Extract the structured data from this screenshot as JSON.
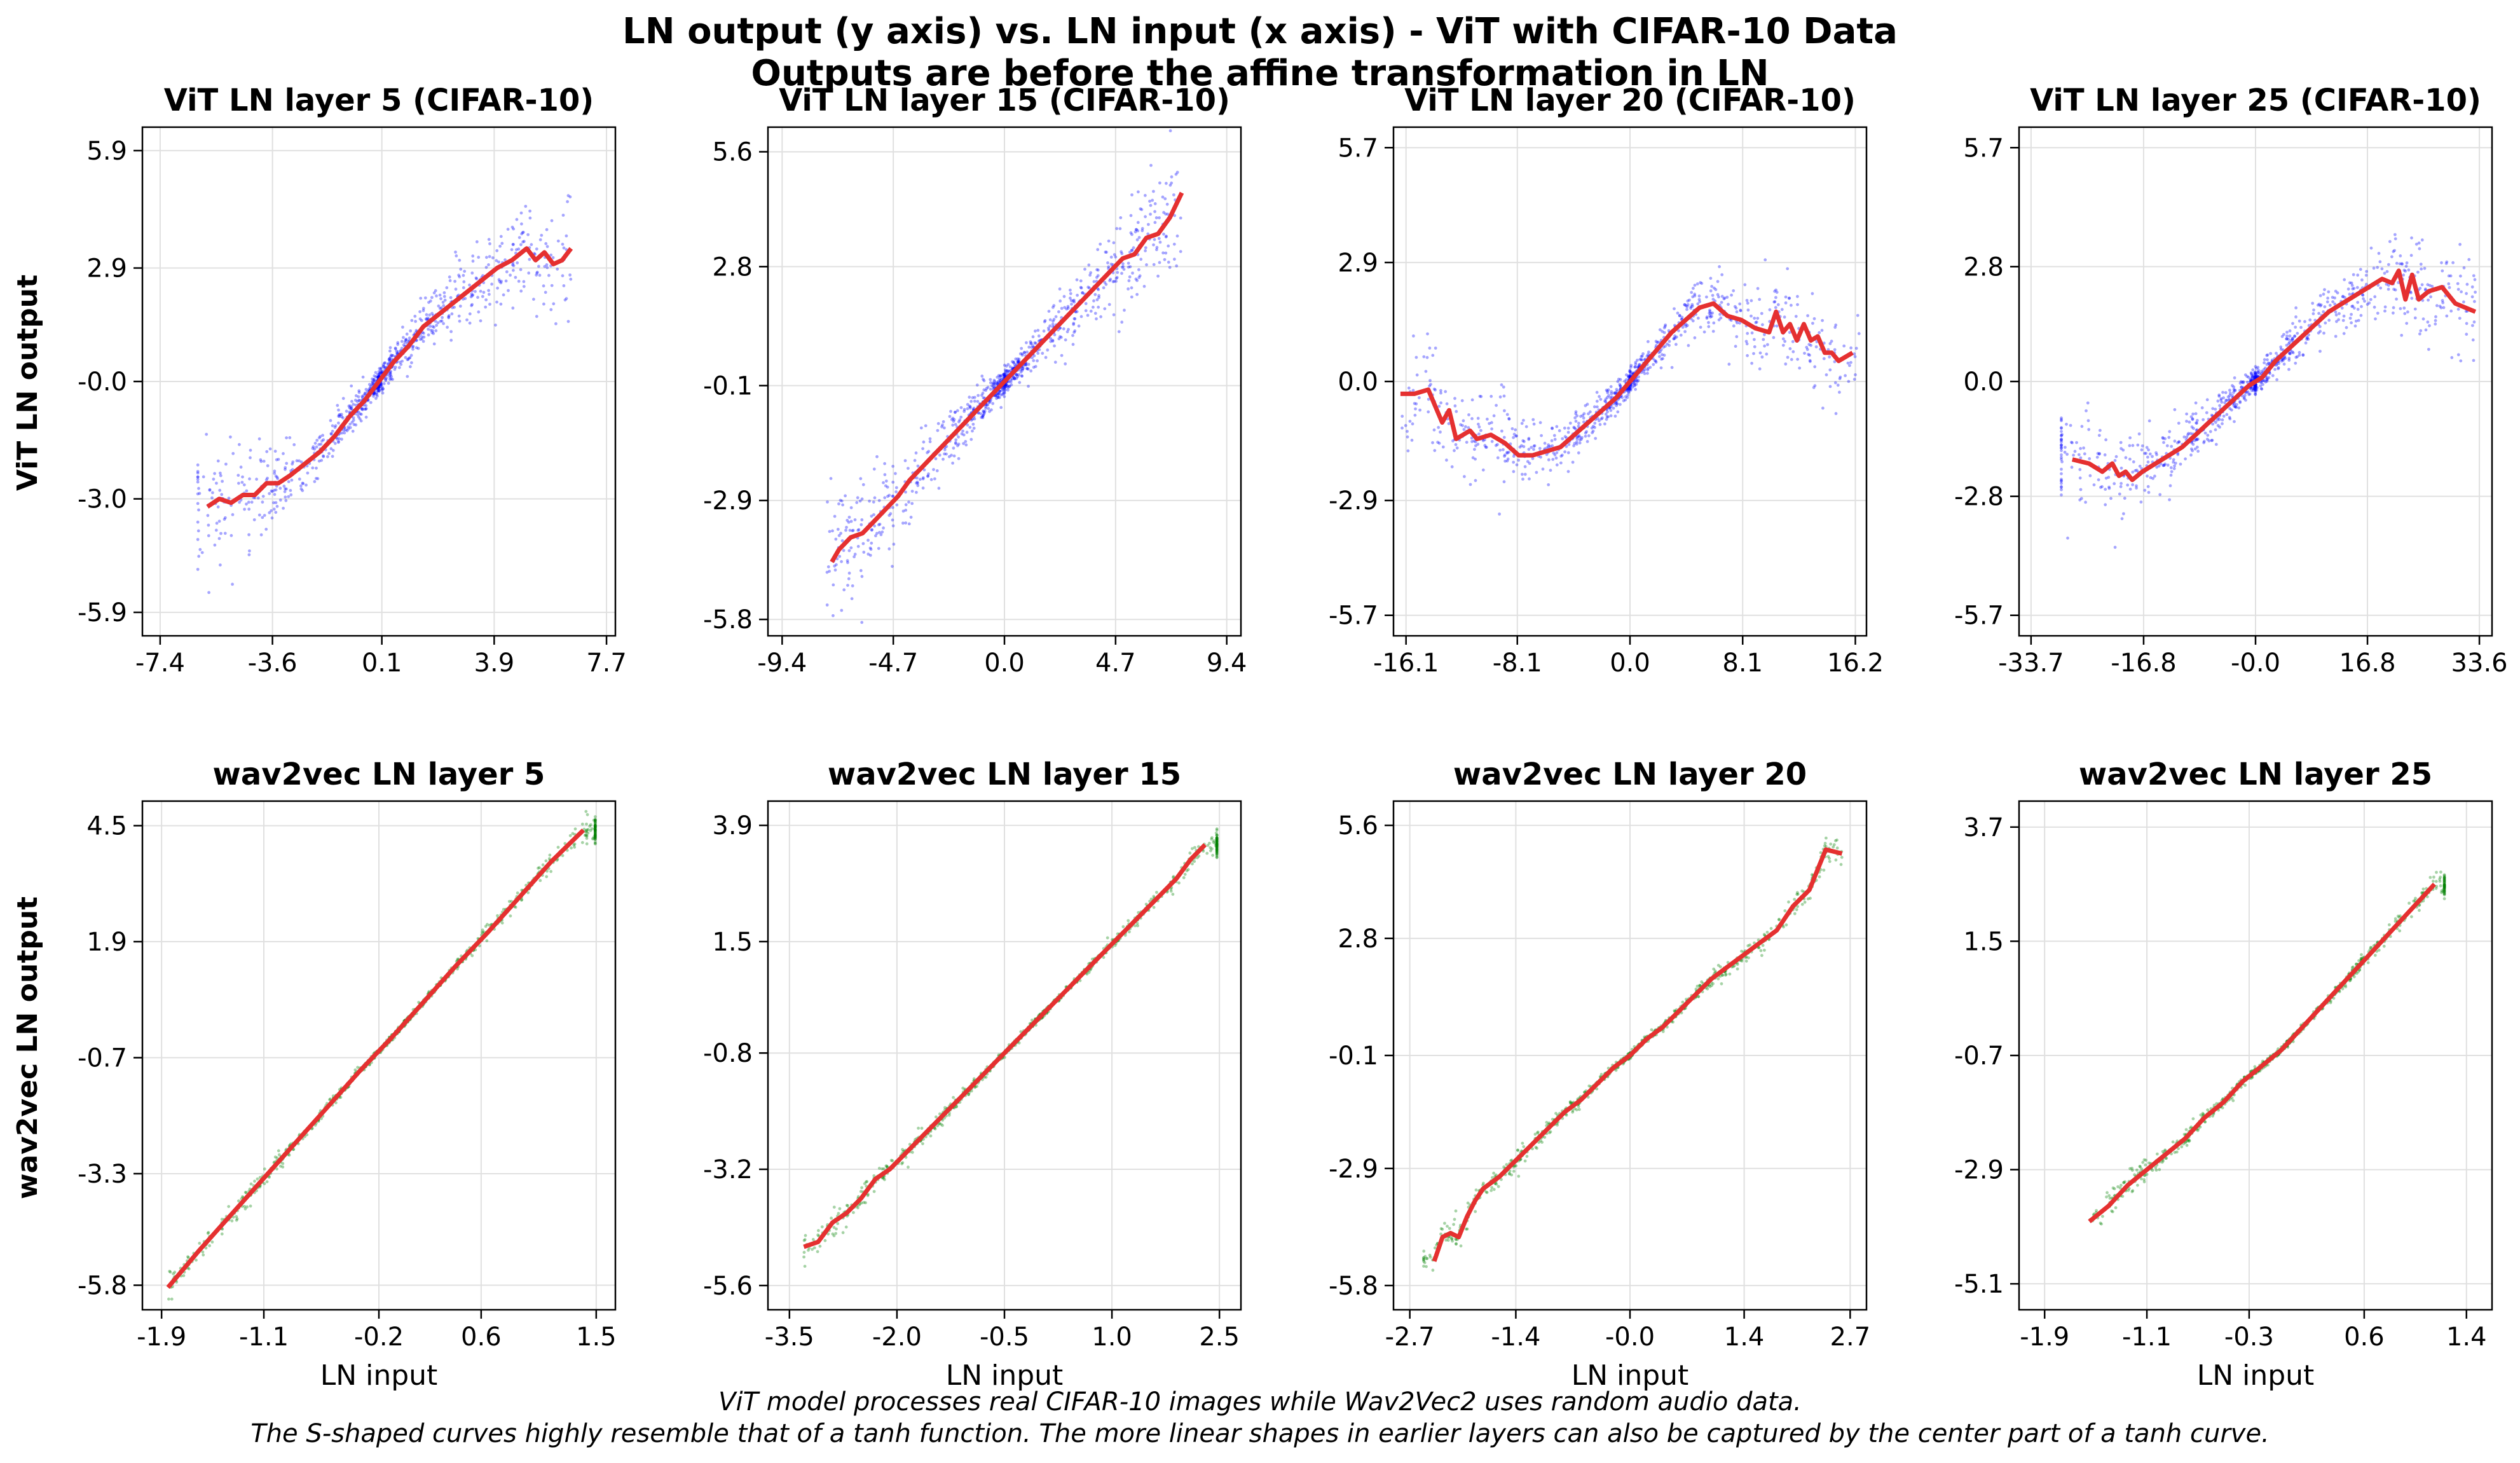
{
  "figure": {
    "title_line1": "LN output (y axis) vs. LN input (x axis) - ViT with CIFAR-10 Data",
    "title_line2": "Outputs are before the affine transformation in LN",
    "caption_line1": "ViT model processes real CIFAR-10 images while Wav2Vec2 uses random audio data.",
    "caption_line2": "The S-shaped curves highly resemble that of a tanh function. The more linear shapes in earlier layers can also be captured by the center part of a tanh curve.",
    "row_labels": [
      "ViT LN output",
      "wav2vec LN output"
    ],
    "colors": {
      "vit_points": "#0000ff",
      "wav2vec_points": "#008000",
      "trend_line": "#e53030",
      "grid": "#e0e0e0"
    }
  },
  "chart_data": [
    {
      "type": "scatter",
      "title": "ViT LN layer 5 (CIFAR-10)",
      "xlabel": "",
      "ylabel": "ViT LN output",
      "xlim": [
        -8.0,
        8.0
      ],
      "ylim": [
        -6.5,
        6.5
      ],
      "xticks": [
        -7.4,
        -3.6,
        0.1,
        3.9,
        7.7
      ],
      "xtick_labels": [
        "-7.4",
        "-3.6",
        "0.1",
        "3.9",
        "7.7"
      ],
      "yticks": [
        -5.9,
        -3.0,
        0.0,
        2.9,
        5.9
      ],
      "ytick_labels": [
        "-5.9",
        "-3.0",
        "-0.0",
        "2.9",
        "5.9"
      ],
      "points_color": "#0000ff",
      "grid": true,
      "trend_x": [
        -5.8,
        -5.4,
        -5.0,
        -4.6,
        -4.2,
        -3.8,
        -3.4,
        -3.0,
        -2.5,
        -2.0,
        -1.5,
        -1.0,
        -0.5,
        0.0,
        0.5,
        1.0,
        1.5,
        2.0,
        2.5,
        3.0,
        3.5,
        4.0,
        4.5,
        5.0,
        5.3,
        5.6,
        5.9,
        6.2,
        6.5
      ],
      "trend_y": [
        -3.2,
        -3.0,
        -3.1,
        -2.9,
        -2.9,
        -2.6,
        -2.6,
        -2.4,
        -2.1,
        -1.8,
        -1.4,
        -0.9,
        -0.5,
        0.0,
        0.5,
        0.9,
        1.4,
        1.7,
        2.0,
        2.3,
        2.6,
        2.9,
        3.1,
        3.4,
        3.1,
        3.3,
        3.0,
        3.1,
        3.4
      ]
    },
    {
      "type": "scatter",
      "title": "ViT LN layer 15 (CIFAR-10)",
      "xlabel": "",
      "ylabel": "",
      "xlim": [
        -10.0,
        10.0
      ],
      "ylim": [
        -6.2,
        6.2
      ],
      "xticks": [
        -9.4,
        -4.7,
        0.0,
        4.7,
        9.4
      ],
      "xtick_labels": [
        "-9.4",
        "-4.7",
        "0.0",
        "4.7",
        "9.4"
      ],
      "yticks": [
        -5.8,
        -2.9,
        -0.1,
        2.8,
        5.6
      ],
      "ytick_labels": [
        "-5.8",
        "-2.9",
        "-0.1",
        "2.8",
        "5.6"
      ],
      "points_color": "#0000ff",
      "grid": true,
      "trend_x": [
        -7.3,
        -7.0,
        -6.5,
        -6.0,
        -5.5,
        -5.0,
        -4.5,
        -4.0,
        -3.5,
        -3.0,
        -2.5,
        -2.0,
        -1.5,
        -1.0,
        -0.5,
        0.0,
        0.5,
        1.0,
        1.5,
        2.0,
        2.5,
        3.0,
        3.5,
        4.0,
        4.5,
        5.0,
        5.5,
        6.0,
        6.5,
        7.0,
        7.5
      ],
      "trend_y": [
        -4.4,
        -4.1,
        -3.8,
        -3.7,
        -3.4,
        -3.1,
        -2.8,
        -2.4,
        -2.1,
        -1.8,
        -1.5,
        -1.2,
        -0.9,
        -0.6,
        -0.3,
        0.0,
        0.3,
        0.6,
        0.9,
        1.2,
        1.5,
        1.8,
        2.1,
        2.4,
        2.7,
        3.0,
        3.1,
        3.5,
        3.6,
        4.0,
        4.6
      ]
    },
    {
      "type": "scatter",
      "title": "ViT LN layer 20 (CIFAR-10)",
      "xlabel": "",
      "ylabel": "",
      "xlim": [
        -17.0,
        17.0
      ],
      "ylim": [
        -6.2,
        6.2
      ],
      "xticks": [
        -16.1,
        -8.1,
        0.0,
        8.1,
        16.2
      ],
      "xtick_labels": [
        "-16.1",
        "-8.1",
        "0.0",
        "8.1",
        "16.2"
      ],
      "yticks": [
        -5.7,
        -2.9,
        0.0,
        2.9,
        5.7
      ],
      "ytick_labels": [
        "-5.7",
        "-2.9",
        "0.0",
        "2.9",
        "5.7"
      ],
      "points_color": "#0000ff",
      "grid": true,
      "trend_x": [
        -16.5,
        -15.5,
        -14.5,
        -14.0,
        -13.5,
        -13.0,
        -12.5,
        -12.0,
        -11.5,
        -11.0,
        -10.0,
        -9.0,
        -8.0,
        -7.0,
        -6.0,
        -5.0,
        -4.0,
        -3.0,
        -2.0,
        -1.0,
        0.0,
        1.0,
        2.0,
        3.0,
        4.0,
        5.0,
        6.0,
        7.0,
        8.0,
        9.0,
        10.0,
        10.5,
        11.0,
        11.5,
        12.0,
        12.5,
        13.0,
        13.5,
        14.0,
        14.5,
        15.0,
        16.0
      ],
      "trend_y": [
        -0.3,
        -0.3,
        -0.2,
        -0.6,
        -1.0,
        -0.7,
        -1.4,
        -1.3,
        -1.2,
        -1.4,
        -1.3,
        -1.5,
        -1.8,
        -1.8,
        -1.7,
        -1.6,
        -1.3,
        -1.0,
        -0.7,
        -0.4,
        0.0,
        0.4,
        0.8,
        1.2,
        1.5,
        1.8,
        1.9,
        1.6,
        1.5,
        1.3,
        1.2,
        1.7,
        1.2,
        1.4,
        1.0,
        1.4,
        1.0,
        1.1,
        0.7,
        0.7,
        0.5,
        0.7
      ]
    },
    {
      "type": "scatter",
      "title": "ViT LN layer 25 (CIFAR-10)",
      "xlabel": "",
      "ylabel": "",
      "xlim": [
        -35.5,
        35.5
      ],
      "ylim": [
        -6.2,
        6.2
      ],
      "xticks": [
        -33.7,
        -16.8,
        0.0,
        16.8,
        33.6
      ],
      "xtick_labels": [
        "-33.7",
        "-16.8",
        "-0.0",
        "16.8",
        "33.6"
      ],
      "yticks": [
        -5.7,
        -2.8,
        0.0,
        2.8,
        5.7
      ],
      "ytick_labels": [
        "-5.7",
        "-2.8",
        "0.0",
        "2.8",
        "5.7"
      ],
      "points_color": "#0000ff",
      "grid": true,
      "trend_x": [
        -27.5,
        -25.0,
        -23.0,
        -21.5,
        -20.5,
        -19.5,
        -18.5,
        -17.0,
        -15.0,
        -13.0,
        -11.0,
        -9.0,
        -7.0,
        -5.0,
        -3.0,
        -1.0,
        0.0,
        1.0,
        3.0,
        5.0,
        7.0,
        9.0,
        11.0,
        13.0,
        15.0,
        17.0,
        19.0,
        20.5,
        21.5,
        22.5,
        23.5,
        24.5,
        26.0,
        28.0,
        30.0,
        33.0
      ],
      "trend_y": [
        -1.9,
        -2.0,
        -2.2,
        -2.0,
        -2.3,
        -2.2,
        -2.4,
        -2.2,
        -2.0,
        -1.8,
        -1.6,
        -1.3,
        -1.0,
        -0.7,
        -0.4,
        -0.1,
        0.0,
        0.1,
        0.5,
        0.8,
        1.1,
        1.4,
        1.7,
        1.9,
        2.1,
        2.3,
        2.5,
        2.4,
        2.7,
        2.0,
        2.6,
        2.0,
        2.2,
        2.3,
        1.9,
        1.7
      ]
    },
    {
      "type": "scatter",
      "title": "wav2vec LN layer 5",
      "xlabel": "LN input",
      "ylabel": "wav2vec LN output",
      "xlim": [
        -2.05,
        1.65
      ],
      "ylim": [
        -6.35,
        5.05
      ],
      "xticks": [
        -1.9,
        -1.1,
        -0.2,
        0.6,
        1.5
      ],
      "xtick_labels": [
        "-1.9",
        "-1.1",
        "-0.2",
        "0.6",
        "1.5"
      ],
      "yticks": [
        -5.8,
        -3.3,
        -0.7,
        1.9,
        4.5
      ],
      "ytick_labels": [
        "-5.8",
        "-3.3",
        "-0.7",
        "1.9",
        "4.5"
      ],
      "points_color": "#008000",
      "grid": true,
      "trend_x": [
        -1.85,
        -1.6,
        -1.35,
        -1.1,
        -0.85,
        -0.6,
        -0.35,
        -0.1,
        0.15,
        0.4,
        0.65,
        0.9,
        1.15,
        1.4
      ],
      "trend_y": [
        -5.85,
        -5.0,
        -4.2,
        -3.4,
        -2.6,
        -1.8,
        -1.0,
        -0.25,
        0.55,
        1.35,
        2.1,
        2.9,
        3.7,
        4.4
      ]
    },
    {
      "type": "scatter",
      "title": "wav2vec LN layer 15",
      "xlabel": "LN input",
      "ylabel": "",
      "xlim": [
        -3.8,
        2.8
      ],
      "ylim": [
        -6.1,
        4.4
      ],
      "xticks": [
        -3.5,
        -2.0,
        -0.5,
        1.0,
        2.5
      ],
      "xtick_labels": [
        "-3.5",
        "-2.0",
        "-0.5",
        "1.0",
        "2.5"
      ],
      "yticks": [
        -5.6,
        -3.2,
        -0.8,
        1.5,
        3.9
      ],
      "ytick_labels": [
        "-5.6",
        "-3.2",
        "-0.8",
        "1.5",
        "3.9"
      ],
      "points_color": "#008000",
      "grid": true,
      "trend_x": [
        -3.3,
        -3.1,
        -2.9,
        -2.7,
        -2.5,
        -2.3,
        -2.1,
        -1.9,
        -1.7,
        -1.5,
        -1.3,
        -1.1,
        -0.9,
        -0.7,
        -0.5,
        -0.3,
        -0.1,
        0.1,
        0.3,
        0.5,
        0.7,
        0.9,
        1.1,
        1.3,
        1.5,
        1.7,
        1.9,
        2.1,
        2.3
      ],
      "trend_y": [
        -4.8,
        -4.7,
        -4.3,
        -4.1,
        -3.8,
        -3.4,
        -3.2,
        -2.9,
        -2.6,
        -2.3,
        -2.0,
        -1.7,
        -1.4,
        -1.1,
        -0.8,
        -0.5,
        -0.2,
        0.1,
        0.4,
        0.7,
        1.0,
        1.3,
        1.6,
        1.9,
        2.2,
        2.5,
        2.8,
        3.2,
        3.5
      ]
    },
    {
      "type": "scatter",
      "title": "wav2vec LN layer 20",
      "xlabel": "LN input",
      "ylabel": "",
      "xlim": [
        -2.9,
        2.9
      ],
      "ylim": [
        -6.4,
        6.2
      ],
      "xticks": [
        -2.7,
        -1.4,
        0.0,
        1.4,
        2.7
      ],
      "xtick_labels": [
        "-2.7",
        "-1.4",
        "-0.0",
        "1.4",
        "2.7"
      ],
      "yticks": [
        -5.8,
        -2.9,
        -0.1,
        2.8,
        5.6
      ],
      "ytick_labels": [
        "-5.8",
        "-2.9",
        "-0.1",
        "2.8",
        "5.6"
      ],
      "points_color": "#008000",
      "grid": true,
      "trend_x": [
        -2.4,
        -2.3,
        -2.2,
        -2.1,
        -2.0,
        -1.9,
        -1.8,
        -1.6,
        -1.4,
        -1.2,
        -1.0,
        -0.8,
        -0.6,
        -0.4,
        -0.2,
        0.0,
        0.2,
        0.4,
        0.6,
        0.8,
        1.0,
        1.2,
        1.4,
        1.6,
        1.8,
        2.0,
        2.2,
        2.4,
        2.6
      ],
      "trend_y": [
        -5.2,
        -4.6,
        -4.5,
        -4.6,
        -4.1,
        -3.7,
        -3.4,
        -3.1,
        -2.7,
        -2.3,
        -1.9,
        -1.5,
        -1.2,
        -0.8,
        -0.4,
        -0.1,
        0.3,
        0.6,
        1.0,
        1.4,
        1.8,
        2.1,
        2.4,
        2.7,
        3.0,
        3.6,
        4.0,
        5.0,
        4.9
      ]
    },
    {
      "type": "scatter",
      "title": "wav2vec LN layer 25",
      "xlabel": "LN input",
      "ylabel": "",
      "xlim": [
        -2.1,
        1.6
      ],
      "ylim": [
        -5.6,
        4.2
      ],
      "xticks": [
        -1.9,
        -1.1,
        -0.3,
        0.6,
        1.4
      ],
      "xtick_labels": [
        "-1.9",
        "-1.1",
        "-0.3",
        "0.6",
        "1.4"
      ],
      "yticks": [
        -5.1,
        -2.9,
        -0.7,
        1.5,
        3.7
      ],
      "ytick_labels": [
        "-5.1",
        "-2.9",
        "-0.7",
        "1.5",
        "3.7"
      ],
      "points_color": "#008000",
      "grid": true,
      "trend_x": [
        -1.55,
        -1.4,
        -1.25,
        -1.1,
        -0.95,
        -0.8,
        -0.65,
        -0.5,
        -0.35,
        -0.2,
        -0.05,
        0.1,
        0.25,
        0.4,
        0.55,
        0.7,
        0.85,
        1.0,
        1.15
      ],
      "trend_y": [
        -3.9,
        -3.6,
        -3.2,
        -2.9,
        -2.6,
        -2.3,
        -1.9,
        -1.6,
        -1.2,
        -0.9,
        -0.6,
        -0.2,
        0.2,
        0.6,
        1.0,
        1.4,
        1.8,
        2.2,
        2.6
      ]
    }
  ]
}
